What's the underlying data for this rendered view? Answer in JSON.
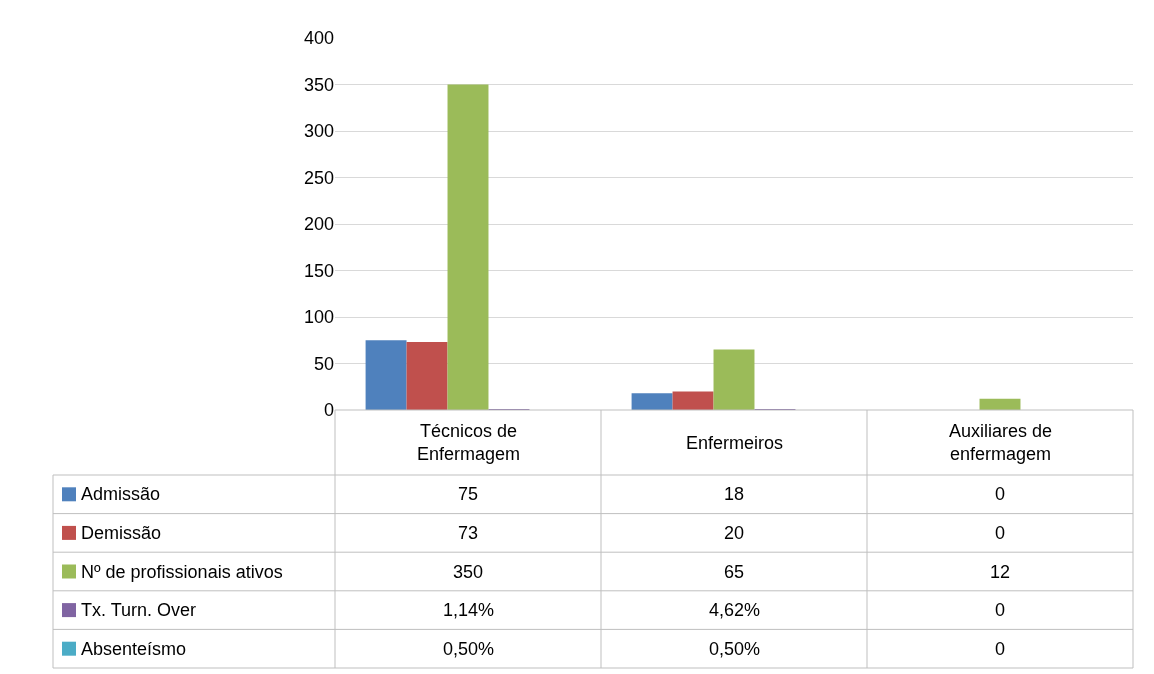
{
  "chart_data": {
    "type": "bar",
    "categories": [
      "Técnicos de Enfermagem",
      "Enfermeiros",
      "Auxiliares de enfermagem"
    ],
    "series": [
      {
        "name": "Admissão",
        "color": "#4f81bd",
        "values": [
          75,
          18,
          0
        ],
        "value_labels": [
          "75",
          "18",
          "0"
        ]
      },
      {
        "name": "Demissão",
        "color": "#c0504d",
        "values": [
          73,
          20,
          0
        ],
        "value_labels": [
          "73",
          "20",
          "0"
        ]
      },
      {
        "name": "Nº de profissionais ativos",
        "color": "#9bbb59",
        "values": [
          350,
          65,
          12
        ],
        "value_labels": [
          "350",
          "65",
          "12"
        ]
      },
      {
        "name": "Tx. Turn. Over",
        "color": "#8064a2",
        "values": [
          0.0114,
          0.0462,
          0
        ],
        "value_labels": [
          "1,14%",
          "4,62%",
          "0"
        ]
      },
      {
        "name": "Absenteísmo",
        "color": "#4bacc6",
        "values": [
          0.005,
          0.005,
          0
        ],
        "value_labels": [
          "0,50%",
          "0,50%",
          "0"
        ]
      }
    ],
    "ylim": [
      0,
      400
    ],
    "yticks": [
      0,
      50,
      100,
      150,
      200,
      250,
      300,
      350,
      400
    ],
    "grid": "y",
    "legend": "bottom"
  }
}
